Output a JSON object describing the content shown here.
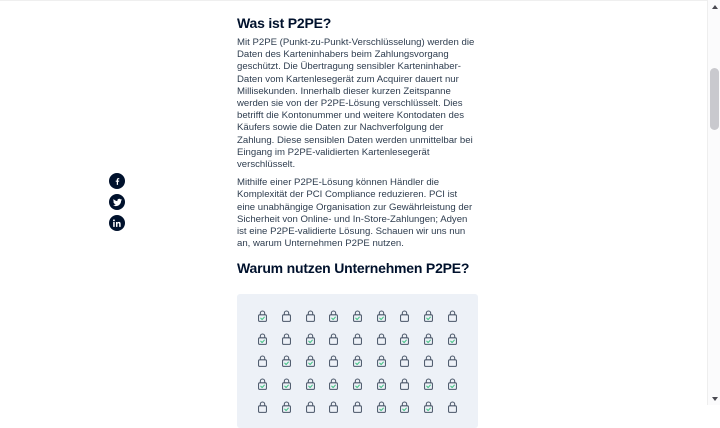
{
  "article": {
    "heading_1": "Was ist P2PE?",
    "paragraph_1": "Mit P2PE (Punkt-zu-Punkt-Verschlüsselung) werden die Daten des Karteninhabers beim Zahlungsvorgang geschützt. Die Übertragung sensibler Karteninhaber-Daten vom Kartenlesegerät zum Acquirer dauert nur Millisekunden. Innerhalb dieser kurzen Zeitspanne werden sie von der P2PE-Lösung verschlüsselt. Dies betrifft die Kontonummer und weitere Kontodaten des Käufers sowie die Daten zur Nachverfolgung der Zahlung. Diese sensiblen Daten werden unmittelbar bei Eingang im P2PE-validierten Kartenlesegerät verschlüsselt.",
    "paragraph_2": "Mithilfe einer P2PE-Lösung können Händler die Komplexität der PCI Compliance reduzieren. PCI ist eine unabhängige Organisation zur Gewährleistung der Sicherheit von Online- und In-Store-Zahlungen; Adyen ist eine P2PE-validierte Lösung. Schauen wir uns nun an, warum Unternehmen P2PE nutzen.",
    "heading_2": "Warum nutzen Unternehmen P2PE?"
  },
  "share_rail": {
    "items": [
      {
        "name": "facebook",
        "icon": "facebook-icon"
      },
      {
        "name": "twitter",
        "icon": "twitter-icon"
      },
      {
        "name": "linkedin",
        "icon": "linkedin-icon"
      }
    ],
    "circle_color": "#00112c",
    "glyph_color": "#ffffff"
  },
  "lock_illustration": {
    "rows": 5,
    "cols": 9,
    "checked_grid": [
      [
        1,
        0,
        0,
        1,
        1,
        1,
        0,
        1,
        0
      ],
      [
        1,
        0,
        1,
        0,
        0,
        0,
        1,
        1,
        1
      ],
      [
        0,
        1,
        1,
        0,
        1,
        1,
        0,
        0,
        0
      ],
      [
        1,
        1,
        1,
        1,
        1,
        1,
        0,
        1,
        1
      ],
      [
        0,
        1,
        0,
        0,
        0,
        1,
        1,
        1,
        0
      ]
    ],
    "panel_bg": "#edf1f7",
    "lock_color": "#4a5668",
    "check_color": "#4ec58c"
  },
  "colors": {
    "page_bg": "#ffffff",
    "heading": "#00112c",
    "body_text": "#2e3d4f"
  },
  "scrollbar": {
    "thumb_color": "#c9c9ce",
    "track_color": "#fbfbfc"
  }
}
